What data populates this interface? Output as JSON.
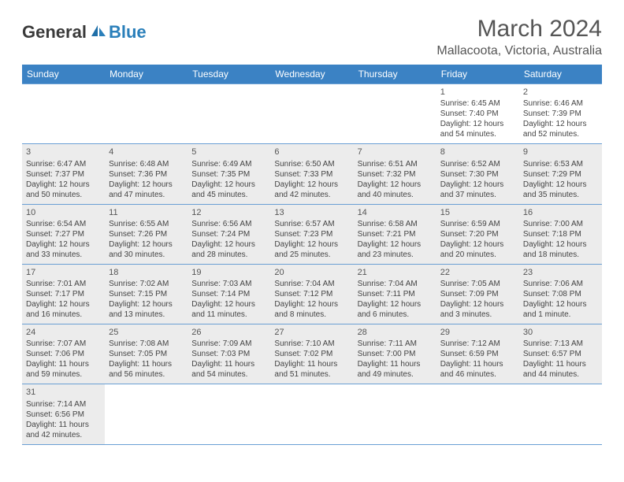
{
  "logo": {
    "general": "General",
    "blue": "Blue"
  },
  "title": "March 2024",
  "location": "Mallacoota, Victoria, Australia",
  "columns": [
    "Sunday",
    "Monday",
    "Tuesday",
    "Wednesday",
    "Thursday",
    "Friday",
    "Saturday"
  ],
  "colors": {
    "header_bg": "#3b82c4",
    "header_text": "#ffffff",
    "shaded_bg": "#ececec",
    "border": "#6a9fd4",
    "logo_blue": "#2a7fba"
  },
  "typography": {
    "title_fontsize": 30,
    "location_fontsize": 16,
    "dayheader_fontsize": 12,
    "cell_fontsize": 10
  },
  "weeks": [
    [
      {
        "day": "",
        "empty": true
      },
      {
        "day": "",
        "empty": true
      },
      {
        "day": "",
        "empty": true
      },
      {
        "day": "",
        "empty": true
      },
      {
        "day": "",
        "empty": true
      },
      {
        "day": "1",
        "sunrise": "Sunrise: 6:45 AM",
        "sunset": "Sunset: 7:40 PM",
        "daylight": "Daylight: 12 hours and 54 minutes."
      },
      {
        "day": "2",
        "sunrise": "Sunrise: 6:46 AM",
        "sunset": "Sunset: 7:39 PM",
        "daylight": "Daylight: 12 hours and 52 minutes."
      }
    ],
    [
      {
        "day": "3",
        "sunrise": "Sunrise: 6:47 AM",
        "sunset": "Sunset: 7:37 PM",
        "daylight": "Daylight: 12 hours and 50 minutes.",
        "shaded": true
      },
      {
        "day": "4",
        "sunrise": "Sunrise: 6:48 AM",
        "sunset": "Sunset: 7:36 PM",
        "daylight": "Daylight: 12 hours and 47 minutes.",
        "shaded": true
      },
      {
        "day": "5",
        "sunrise": "Sunrise: 6:49 AM",
        "sunset": "Sunset: 7:35 PM",
        "daylight": "Daylight: 12 hours and 45 minutes.",
        "shaded": true
      },
      {
        "day": "6",
        "sunrise": "Sunrise: 6:50 AM",
        "sunset": "Sunset: 7:33 PM",
        "daylight": "Daylight: 12 hours and 42 minutes.",
        "shaded": true
      },
      {
        "day": "7",
        "sunrise": "Sunrise: 6:51 AM",
        "sunset": "Sunset: 7:32 PM",
        "daylight": "Daylight: 12 hours and 40 minutes.",
        "shaded": true
      },
      {
        "day": "8",
        "sunrise": "Sunrise: 6:52 AM",
        "sunset": "Sunset: 7:30 PM",
        "daylight": "Daylight: 12 hours and 37 minutes.",
        "shaded": true
      },
      {
        "day": "9",
        "sunrise": "Sunrise: 6:53 AM",
        "sunset": "Sunset: 7:29 PM",
        "daylight": "Daylight: 12 hours and 35 minutes.",
        "shaded": true
      }
    ],
    [
      {
        "day": "10",
        "sunrise": "Sunrise: 6:54 AM",
        "sunset": "Sunset: 7:27 PM",
        "daylight": "Daylight: 12 hours and 33 minutes.",
        "shaded": true
      },
      {
        "day": "11",
        "sunrise": "Sunrise: 6:55 AM",
        "sunset": "Sunset: 7:26 PM",
        "daylight": "Daylight: 12 hours and 30 minutes.",
        "shaded": true
      },
      {
        "day": "12",
        "sunrise": "Sunrise: 6:56 AM",
        "sunset": "Sunset: 7:24 PM",
        "daylight": "Daylight: 12 hours and 28 minutes.",
        "shaded": true
      },
      {
        "day": "13",
        "sunrise": "Sunrise: 6:57 AM",
        "sunset": "Sunset: 7:23 PM",
        "daylight": "Daylight: 12 hours and 25 minutes.",
        "shaded": true
      },
      {
        "day": "14",
        "sunrise": "Sunrise: 6:58 AM",
        "sunset": "Sunset: 7:21 PM",
        "daylight": "Daylight: 12 hours and 23 minutes.",
        "shaded": true
      },
      {
        "day": "15",
        "sunrise": "Sunrise: 6:59 AM",
        "sunset": "Sunset: 7:20 PM",
        "daylight": "Daylight: 12 hours and 20 minutes.",
        "shaded": true
      },
      {
        "day": "16",
        "sunrise": "Sunrise: 7:00 AM",
        "sunset": "Sunset: 7:18 PM",
        "daylight": "Daylight: 12 hours and 18 minutes.",
        "shaded": true
      }
    ],
    [
      {
        "day": "17",
        "sunrise": "Sunrise: 7:01 AM",
        "sunset": "Sunset: 7:17 PM",
        "daylight": "Daylight: 12 hours and 16 minutes.",
        "shaded": true
      },
      {
        "day": "18",
        "sunrise": "Sunrise: 7:02 AM",
        "sunset": "Sunset: 7:15 PM",
        "daylight": "Daylight: 12 hours and 13 minutes.",
        "shaded": true
      },
      {
        "day": "19",
        "sunrise": "Sunrise: 7:03 AM",
        "sunset": "Sunset: 7:14 PM",
        "daylight": "Daylight: 12 hours and 11 minutes.",
        "shaded": true
      },
      {
        "day": "20",
        "sunrise": "Sunrise: 7:04 AM",
        "sunset": "Sunset: 7:12 PM",
        "daylight": "Daylight: 12 hours and 8 minutes.",
        "shaded": true
      },
      {
        "day": "21",
        "sunrise": "Sunrise: 7:04 AM",
        "sunset": "Sunset: 7:11 PM",
        "daylight": "Daylight: 12 hours and 6 minutes.",
        "shaded": true
      },
      {
        "day": "22",
        "sunrise": "Sunrise: 7:05 AM",
        "sunset": "Sunset: 7:09 PM",
        "daylight": "Daylight: 12 hours and 3 minutes.",
        "shaded": true
      },
      {
        "day": "23",
        "sunrise": "Sunrise: 7:06 AM",
        "sunset": "Sunset: 7:08 PM",
        "daylight": "Daylight: 12 hours and 1 minute.",
        "shaded": true
      }
    ],
    [
      {
        "day": "24",
        "sunrise": "Sunrise: 7:07 AM",
        "sunset": "Sunset: 7:06 PM",
        "daylight": "Daylight: 11 hours and 59 minutes.",
        "shaded": true
      },
      {
        "day": "25",
        "sunrise": "Sunrise: 7:08 AM",
        "sunset": "Sunset: 7:05 PM",
        "daylight": "Daylight: 11 hours and 56 minutes.",
        "shaded": true
      },
      {
        "day": "26",
        "sunrise": "Sunrise: 7:09 AM",
        "sunset": "Sunset: 7:03 PM",
        "daylight": "Daylight: 11 hours and 54 minutes.",
        "shaded": true
      },
      {
        "day": "27",
        "sunrise": "Sunrise: 7:10 AM",
        "sunset": "Sunset: 7:02 PM",
        "daylight": "Daylight: 11 hours and 51 minutes.",
        "shaded": true
      },
      {
        "day": "28",
        "sunrise": "Sunrise: 7:11 AM",
        "sunset": "Sunset: 7:00 PM",
        "daylight": "Daylight: 11 hours and 49 minutes.",
        "shaded": true
      },
      {
        "day": "29",
        "sunrise": "Sunrise: 7:12 AM",
        "sunset": "Sunset: 6:59 PM",
        "daylight": "Daylight: 11 hours and 46 minutes.",
        "shaded": true
      },
      {
        "day": "30",
        "sunrise": "Sunrise: 7:13 AM",
        "sunset": "Sunset: 6:57 PM",
        "daylight": "Daylight: 11 hours and 44 minutes.",
        "shaded": true
      }
    ],
    [
      {
        "day": "31",
        "sunrise": "Sunrise: 7:14 AM",
        "sunset": "Sunset: 6:56 PM",
        "daylight": "Daylight: 11 hours and 42 minutes.",
        "shaded": true
      },
      {
        "day": "",
        "empty": true
      },
      {
        "day": "",
        "empty": true
      },
      {
        "day": "",
        "empty": true
      },
      {
        "day": "",
        "empty": true
      },
      {
        "day": "",
        "empty": true
      },
      {
        "day": "",
        "empty": true
      }
    ]
  ]
}
